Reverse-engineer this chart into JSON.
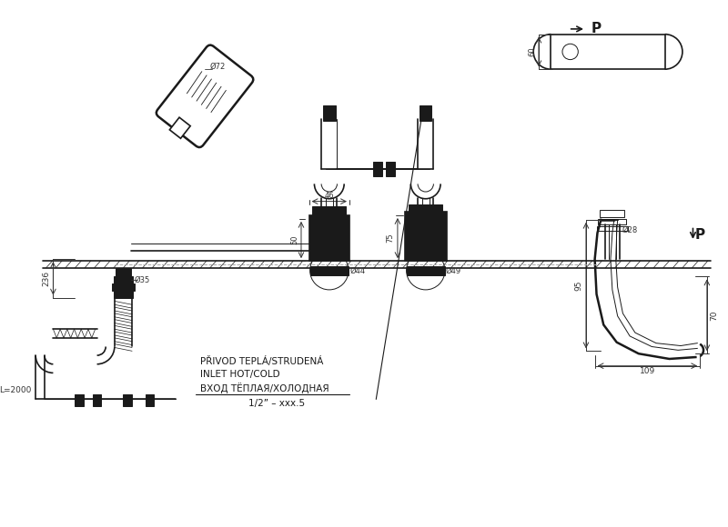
{
  "bg_color": "#ffffff",
  "line_color": "#1a1a1a",
  "dim_color": "#333333",
  "annotations": {
    "L2000": "L=2000",
    "d35": "Ø35",
    "d44": "Ø44",
    "d49": "Ø49",
    "d28": "Ø28",
    "d72": "Ø72",
    "dim_236": "236",
    "dim_46": "46",
    "dim_50": "50",
    "dim_75": "75",
    "dim_109": "109",
    "dim_95": "95",
    "dim_70": "70",
    "dim_60": "60",
    "text1": "PŘIVOD TEPLÁ/STRUDENÁ",
    "text2": "INLET HOT/COLD",
    "text3": "ВХОД ТЁПЛАЯ/ХОЛОДНАЯ",
    "text4": "1/2\" – xxx.5",
    "P_label": "P"
  }
}
